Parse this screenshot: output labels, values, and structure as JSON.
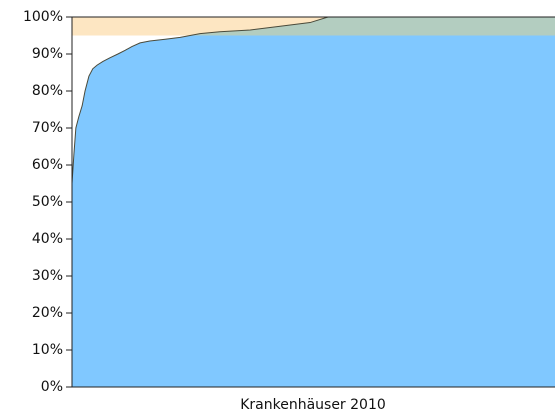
{
  "chart_data": {
    "type": "area",
    "x_label": "Krankenhäuser 2010",
    "x": [
      0,
      0.4,
      0.8,
      1.4,
      2.1,
      2.7,
      3.5,
      4.3,
      5.2,
      6.4,
      7.9,
      9.5,
      11,
      12.4,
      14.1,
      16.1,
      19.3,
      22.4,
      26.5,
      30.6,
      36.9,
      43.1,
      49.3,
      53,
      100
    ],
    "values": [
      55,
      63,
      70,
      73,
      76,
      80,
      84,
      86,
      87,
      88,
      89,
      90,
      91,
      92,
      93,
      93.5,
      94,
      94.5,
      95.5,
      96,
      96.5,
      97.5,
      98.5,
      100,
      100
    ],
    "color": "#80c8ff",
    "line_color": "#4a4a3a",
    "band": [
      95,
      100
    ],
    "band_color": "#fde6c2",
    "overlap_color": "#b3cdc0",
    "xlim": [
      0,
      100
    ],
    "ylim": [
      0,
      100
    ],
    "yticks": [
      {
        "value": 0,
        "label": "0%"
      },
      {
        "value": 10,
        "label": "10%"
      },
      {
        "value": 20,
        "label": "20%"
      },
      {
        "value": 30,
        "label": "30%"
      },
      {
        "value": 40,
        "label": "40%"
      },
      {
        "value": 50,
        "label": "50%"
      },
      {
        "value": 60,
        "label": "60%"
      },
      {
        "value": 70,
        "label": "70%"
      },
      {
        "value": 80,
        "label": "80%"
      },
      {
        "value": 90,
        "label": "90%"
      },
      {
        "value": 100,
        "label": "100%"
      }
    ]
  }
}
